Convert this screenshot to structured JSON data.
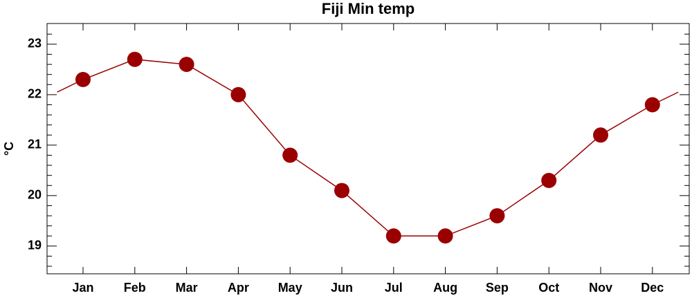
{
  "chart_data": {
    "type": "line",
    "title": "Fiji Min temp",
    "y_label": "°C",
    "categories": [
      "Jan",
      "Feb",
      "Mar",
      "Apr",
      "May",
      "Jun",
      "Jul",
      "Aug",
      "Sep",
      "Oct",
      "Nov",
      "Dec"
    ],
    "series": [
      {
        "name": "Min temp",
        "color": "#9b0000",
        "values": [
          22.3,
          22.7,
          22.6,
          22.0,
          20.8,
          20.1,
          19.2,
          19.2,
          19.6,
          20.3,
          21.2,
          21.8
        ]
      }
    ],
    "ylim": [
      18.45,
      23.41
    ],
    "yticks": [
      19,
      20,
      21,
      22,
      23
    ],
    "yminorticks": [
      18.6,
      18.8,
      19.2,
      19.4,
      19.6,
      19.8,
      20.2,
      20.4,
      20.6,
      20.8,
      21.2,
      21.4,
      21.6,
      21.8,
      22.2,
      22.4,
      22.6,
      22.8,
      23.2
    ],
    "wrap": true
  }
}
